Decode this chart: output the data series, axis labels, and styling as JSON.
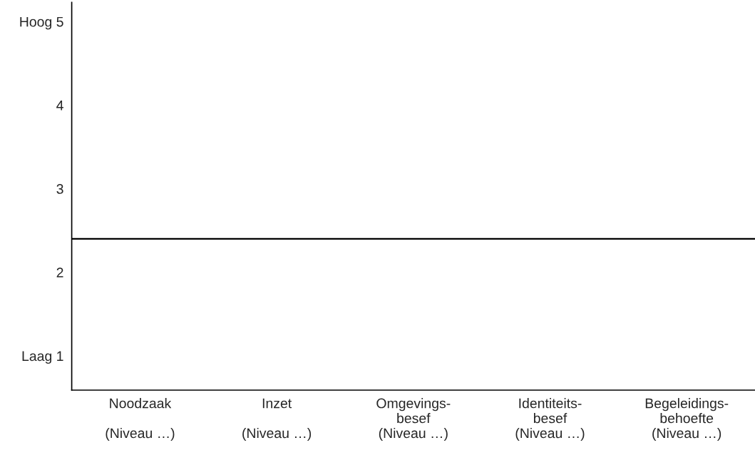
{
  "chart_data": {
    "type": "bar",
    "categories": [
      "Noodzaak\n\n(Niveau …)",
      "Inzet\n\n(Niveau …)",
      "Omgevings-\nbesef\n(Niveau …)",
      "Identiteits-\nbesef\n(Niveau …)",
      "Begeleidings-\nbehoefte\n(Niveau …)"
    ],
    "values": [
      null,
      null,
      null,
      null,
      null
    ],
    "ylim": [
      0.59,
      5.23
    ],
    "yticks": [
      {
        "value": 1,
        "label": "Laag 1"
      },
      2,
      3,
      4,
      {
        "value": 5,
        "label": "Hoog 5"
      }
    ],
    "ref_lines": [
      {
        "axis": "y",
        "value": 2.4,
        "color": "#000000"
      }
    ],
    "grid": false,
    "legend": false
  }
}
